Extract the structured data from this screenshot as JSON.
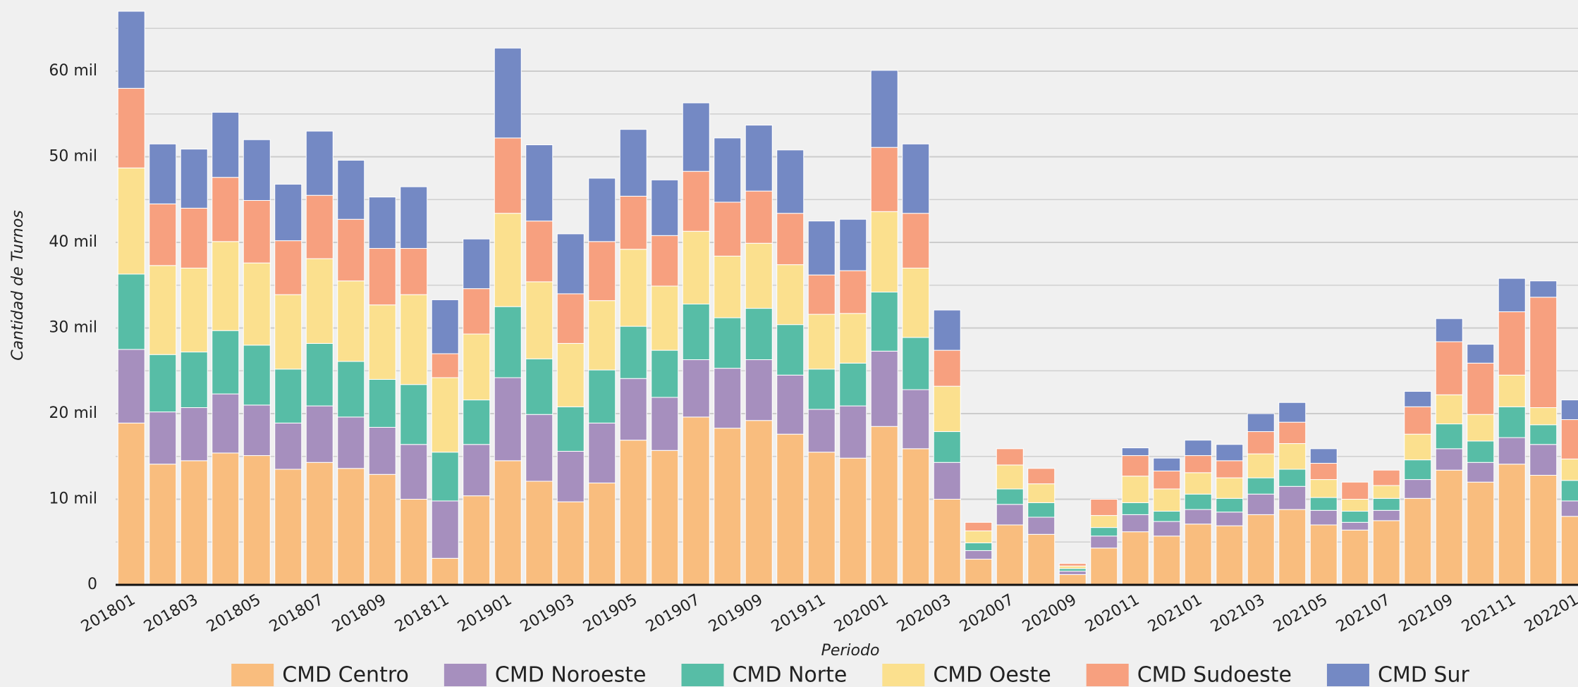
{
  "chart_data": {
    "type": "stacked_bar",
    "x_label": "Periodo",
    "y_label": "Cantidad de Turnos",
    "categories": [
      "201801",
      null,
      "201803",
      null,
      "201805",
      null,
      "201807",
      null,
      "201809",
      null,
      "201811",
      null,
      "201901",
      null,
      "201903",
      null,
      "201905",
      null,
      "201907",
      null,
      "201909",
      null,
      "201911",
      null,
      "202001",
      null,
      "202003",
      null,
      "202007",
      null,
      "202009",
      null,
      "202011",
      null,
      "202101",
      null,
      "202103",
      null,
      "202105",
      null,
      "202107",
      null,
      "202109",
      null,
      "202111",
      null,
      "202201"
    ],
    "series": [
      {
        "name": "CMD Centro",
        "color": "#f9bd7e",
        "values": [
          18900,
          14100,
          14500,
          15400,
          15100,
          13500,
          14300,
          13600,
          12900,
          10000,
          3100,
          10400,
          14500,
          12100,
          9700,
          11900,
          16900,
          15700,
          19600,
          18300,
          19200,
          17600,
          15500,
          14800,
          18500,
          15900,
          10000,
          3000,
          7000,
          5900,
          1200,
          4300,
          6200,
          5700,
          7100,
          6900,
          8200,
          8800,
          7000,
          6400,
          7500,
          10100,
          13400,
          12000,
          14100,
          12800,
          8000
        ]
      },
      {
        "name": "CMD Noroeste",
        "color": "#a68fbe",
        "values": [
          8600,
          6100,
          6200,
          6900,
          5900,
          5400,
          6600,
          6000,
          5500,
          6400,
          6700,
          6000,
          9700,
          7800,
          5900,
          7000,
          7200,
          6200,
          6700,
          7000,
          7100,
          6900,
          5000,
          6100,
          8800,
          6900,
          4300,
          1000,
          2400,
          2000,
          400,
          1400,
          2000,
          1700,
          1700,
          1600,
          2400,
          2700,
          1700,
          900,
          1200,
          2200,
          2500,
          2300,
          3100,
          3600,
          1800
        ]
      },
      {
        "name": "CMD Norte",
        "color": "#57bda6",
        "values": [
          8800,
          6700,
          6500,
          7400,
          7000,
          6300,
          7300,
          6500,
          5600,
          7000,
          5700,
          5200,
          8300,
          6500,
          5200,
          6200,
          6100,
          5500,
          6500,
          5900,
          6000,
          5900,
          4700,
          5000,
          6900,
          6100,
          3600,
          900,
          1800,
          1700,
          300,
          1000,
          1400,
          1200,
          1800,
          1600,
          1900,
          2000,
          1500,
          1300,
          1400,
          2300,
          2900,
          2500,
          3600,
          2300,
          2400
        ]
      },
      {
        "name": "CMD Oeste",
        "color": "#fbe08e",
        "values": [
          12400,
          10400,
          9800,
          10400,
          9600,
          8700,
          9900,
          9400,
          8700,
          10500,
          8700,
          7700,
          10900,
          9000,
          7400,
          8100,
          9000,
          7500,
          8500,
          7200,
          7600,
          7000,
          6400,
          5800,
          9400,
          8100,
          5300,
          1400,
          2800,
          2200,
          300,
          1400,
          3100,
          2600,
          2500,
          2400,
          2800,
          3000,
          2100,
          1400,
          1500,
          3000,
          3400,
          3100,
          3700,
          2000,
          2500
        ]
      },
      {
        "name": "CMD Sudoeste",
        "color": "#f7a07f",
        "values": [
          9300,
          7200,
          7000,
          7500,
          7300,
          6300,
          7400,
          7200,
          6600,
          5400,
          2800,
          5300,
          8800,
          7100,
          5800,
          6900,
          6200,
          5900,
          7000,
          6300,
          6100,
          6000,
          4600,
          5000,
          7500,
          6400,
          4200,
          1000,
          1900,
          1800,
          300,
          1900,
          2400,
          2100,
          2000,
          2000,
          2600,
          2500,
          1900,
          2000,
          1800,
          3200,
          6200,
          6000,
          7400,
          12900,
          4600
        ]
      },
      {
        "name": "CMD Sur",
        "color": "#7489c4",
        "values": [
          9000,
          7000,
          6900,
          7600,
          7100,
          6600,
          7500,
          6900,
          6000,
          7200,
          6300,
          5800,
          10500,
          8900,
          7000,
          7400,
          7800,
          6500,
          8000,
          7500,
          7700,
          7400,
          6300,
          6000,
          9000,
          8100,
          4700,
          0,
          0,
          0,
          0,
          0,
          900,
          1500,
          1800,
          1900,
          2100,
          2300,
          1700,
          0,
          0,
          1800,
          2700,
          2200,
          3900,
          1900,
          2300
        ]
      }
    ],
    "ylim": [
      0,
      67000
    ],
    "yticks": [
      {
        "value": 0,
        "label": "0"
      },
      {
        "value": 10000,
        "label": "10 mil"
      },
      {
        "value": 20000,
        "label": "20 mil"
      },
      {
        "value": 30000,
        "label": "30 mil"
      },
      {
        "value": 40000,
        "label": "40 mil"
      },
      {
        "value": 50000,
        "label": "50 mil"
      },
      {
        "value": 60000,
        "label": "60 mil"
      }
    ],
    "yticks_minor": [
      5000,
      15000,
      25000,
      35000,
      45000,
      55000,
      65000
    ],
    "grid": true
  }
}
